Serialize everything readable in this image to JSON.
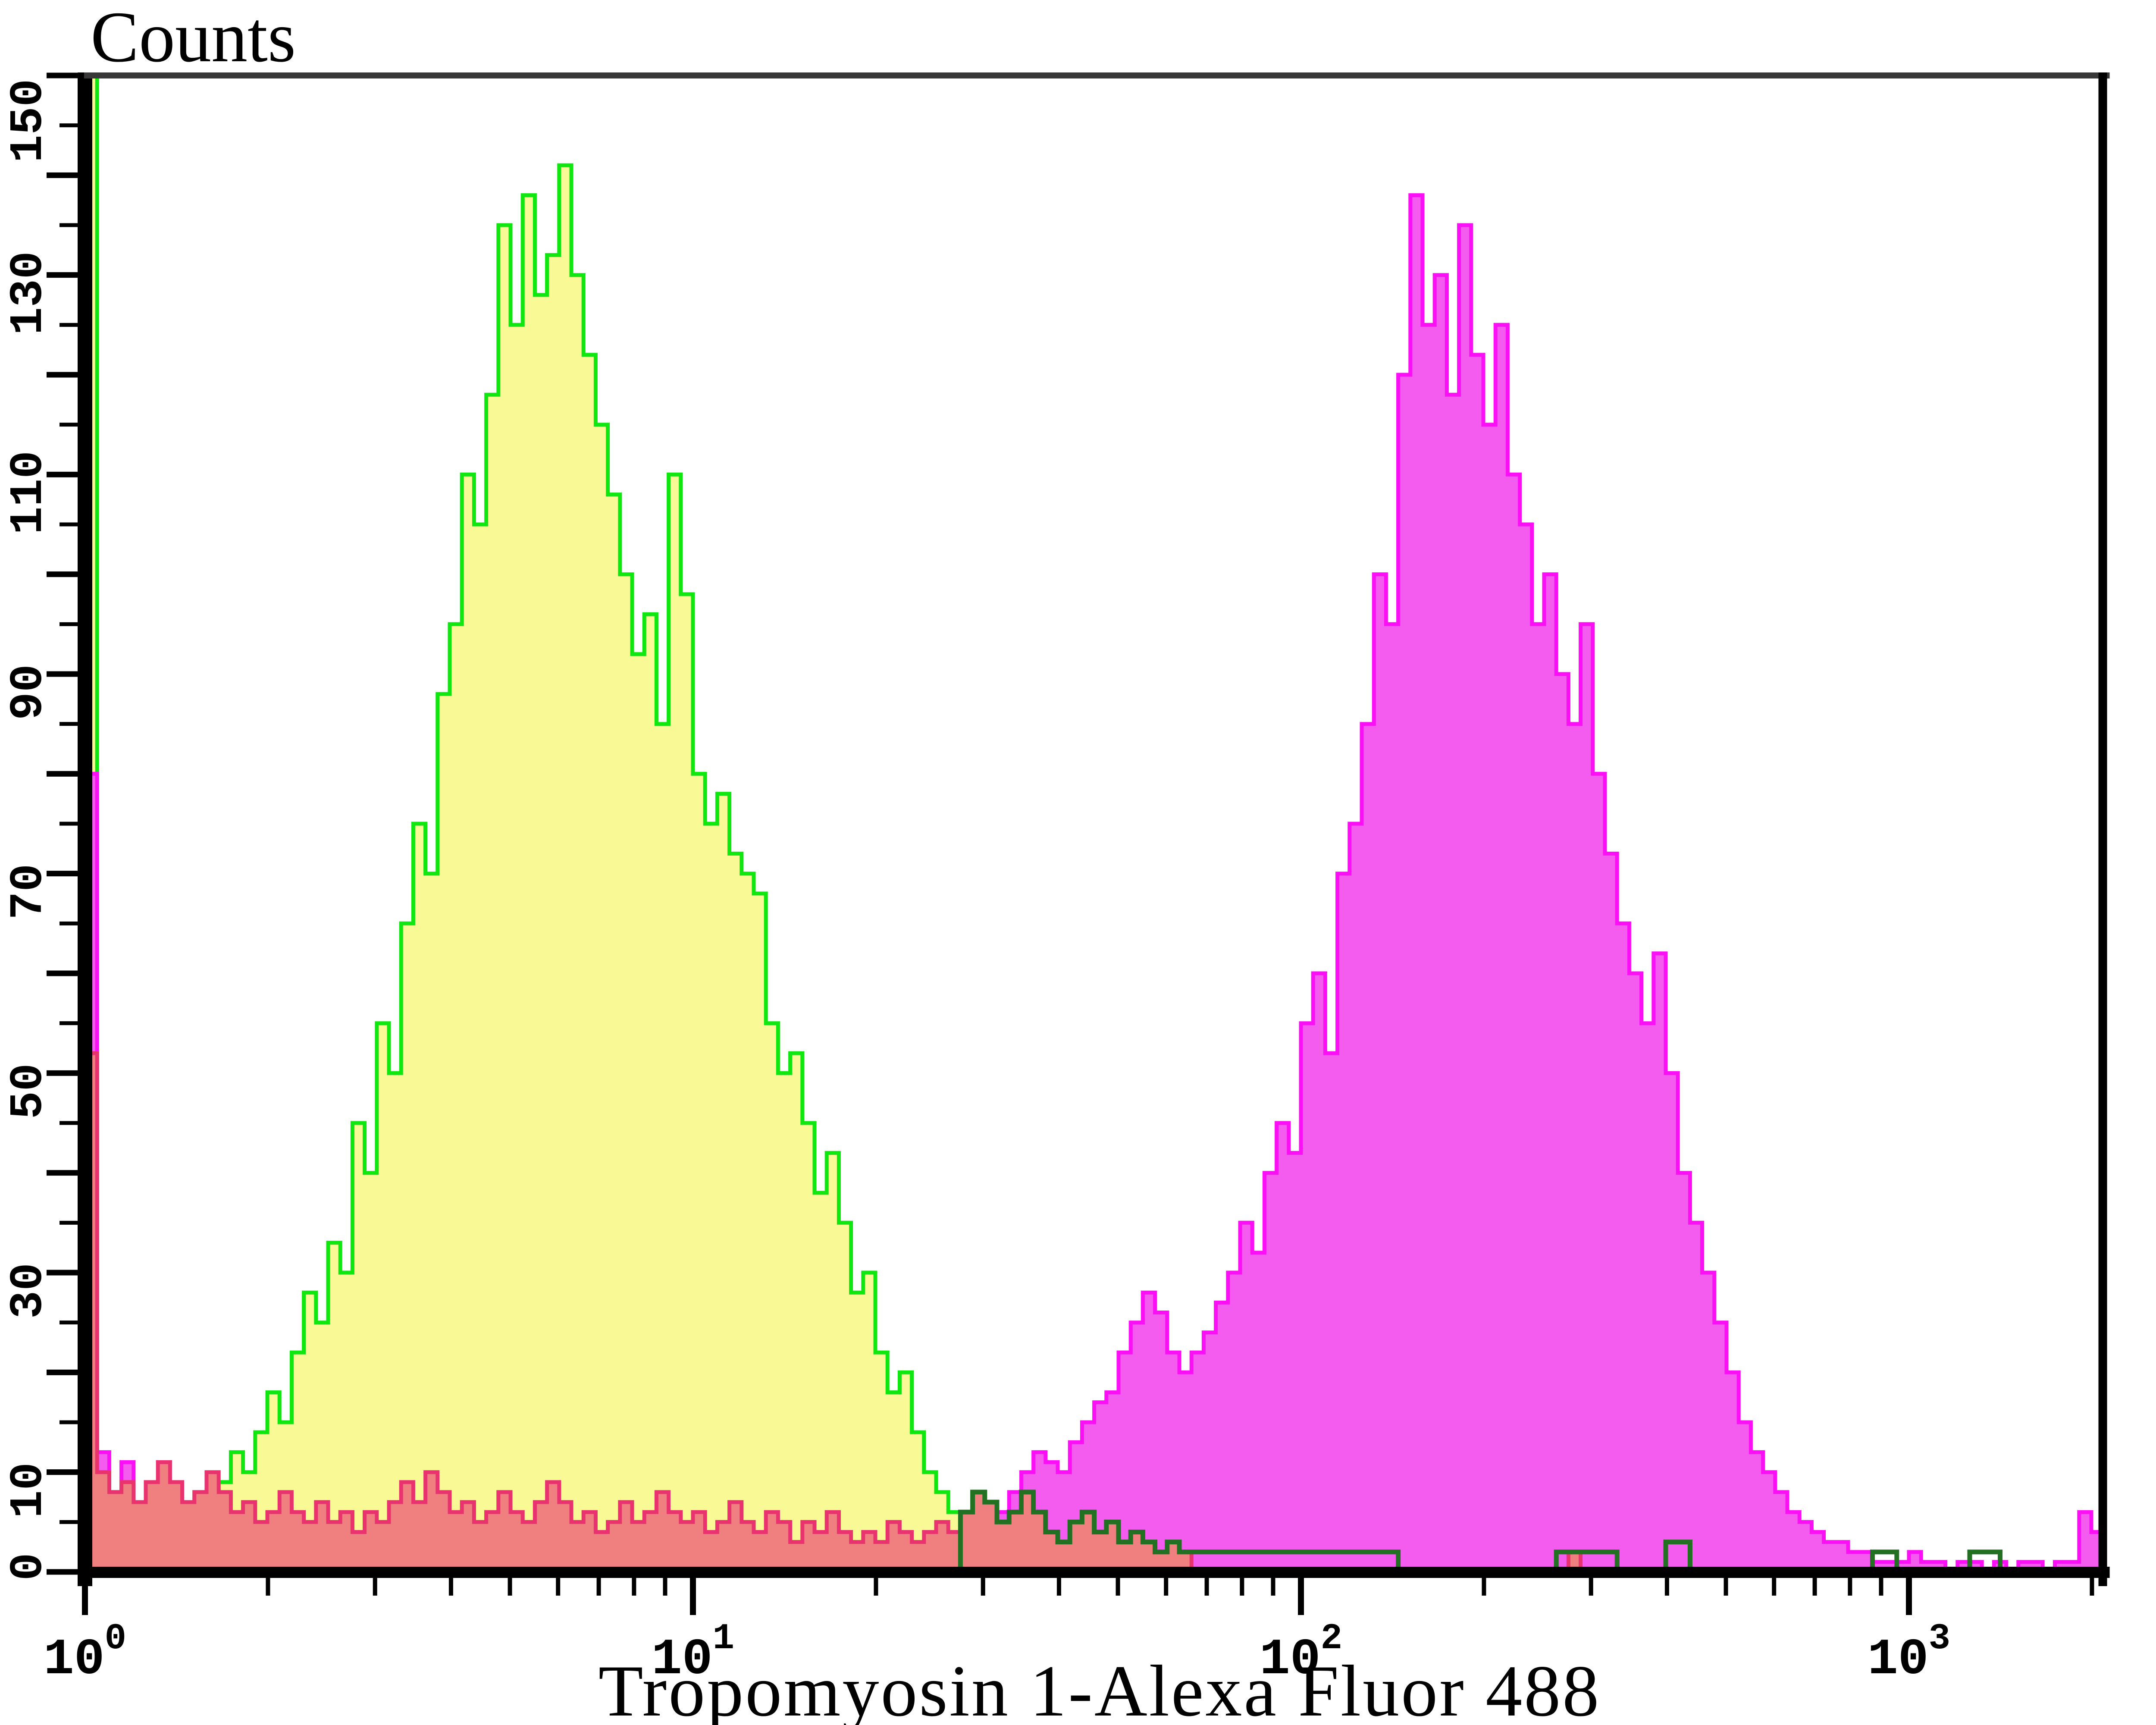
{
  "title": "Counts",
  "x_axis_label": "Tropomyosin 1-Alexa Fluor 488",
  "colors": {
    "control_outline": "#10e610",
    "control_fill": "#f9f996",
    "stained_outline": "#fb10f6",
    "stained_fill": "#f35cef",
    "isotype_outline": "#e8336e",
    "isotype_fill": "#f08080",
    "tail_accent": "#227022",
    "axis": "#000000",
    "top_border": "#383838",
    "background": "#ffffff"
  },
  "chart_data": {
    "type": "area",
    "subtype": "flow-cytometry-overlay-histogram",
    "title": "Counts",
    "xlabel": "Tropomyosin 1-Alexa Fluor 488",
    "x_scale": "log10",
    "x_max_log": 3.316,
    "x_decades": [
      0,
      1,
      2,
      3
    ],
    "x_minor_multipliers": [
      2,
      3,
      4,
      5,
      6,
      7,
      8,
      9
    ],
    "ylim": [
      0,
      150
    ],
    "y_major_step": 10,
    "y_minor_step": 5,
    "y_label_values": [
      0,
      10,
      30,
      50,
      70,
      90,
      110,
      130,
      150
    ],
    "grid": false,
    "legend": "none",
    "series": [
      {
        "name": "negative-control-yellow-green",
        "outline": "#10e610",
        "fill": "#f9f996",
        "parts": [
          {
            "x0": 0,
            "dx": 0.02,
            "counts": [
              150,
              8,
              5,
              6,
              4,
              6,
              5,
              7,
              5,
              8,
              6,
              9,
              12,
              10,
              14,
              18,
              15,
              22,
              28,
              25,
              33,
              30,
              45,
              40,
              55,
              50,
              65,
              75,
              70,
              88,
              95,
              110,
              105,
              118,
              135,
              125,
              138,
              128,
              132,
              141,
              130,
              122,
              115,
              108,
              100,
              92,
              96,
              85,
              110,
              98,
              80,
              75,
              78,
              72,
              70,
              68,
              55,
              50,
              52,
              45,
              38,
              42,
              35,
              28,
              30,
              22,
              18,
              20,
              14,
              10,
              8,
              6,
              4,
              3,
              2,
              0
            ]
          }
        ]
      },
      {
        "name": "tropomyosin1-stained-magenta",
        "outline": "#fb10f6",
        "fill": "#f35cef",
        "parts": [
          {
            "pairs": [
              [
                0,
                80
              ],
              [
                0.02,
                12
              ],
              [
                0.04,
                8
              ],
              [
                0.06,
                11
              ],
              [
                0.08,
                6
              ],
              [
                0.1,
                4
              ],
              [
                0.12,
                3
              ],
              [
                0.16,
                2
              ],
              [
                0.2,
                3
              ],
              [
                0.26,
                2
              ],
              [
                0.32,
                1
              ],
              [
                0.4,
                2
              ],
              [
                0.48,
                1
              ],
              [
                0.56,
                2
              ],
              [
                0.64,
                1
              ],
              [
                0.72,
                2
              ],
              [
                0.8,
                1
              ],
              [
                0.9,
                2
              ],
              [
                1.0,
                1
              ],
              [
                1.1,
                1
              ],
              [
                1.2,
                2
              ],
              [
                1.3,
                1
              ],
              [
                1.38,
                2
              ]
            ]
          },
          {
            "x0": 1.4,
            "dx": 0.02,
            "counts": [
              2,
              2,
              3,
              4,
              5,
              6,
              8,
              10,
              12,
              11,
              10,
              13,
              15,
              17,
              18,
              22,
              25,
              28,
              26,
              22,
              20,
              22,
              24,
              27,
              30,
              35,
              32,
              40,
              45,
              42,
              55,
              60,
              52,
              70,
              75,
              85,
              100,
              95,
              120,
              138,
              125,
              130,
              118,
              135,
              122,
              115,
              125,
              110,
              105,
              95,
              100,
              90,
              85,
              95,
              80,
              72,
              65,
              60,
              55,
              62,
              50,
              40,
              35,
              30,
              25,
              20,
              15,
              12,
              10,
              8,
              6,
              5,
              4,
              3,
              3,
              2,
              2,
              1,
              1,
              1,
              2,
              1,
              1,
              0,
              1,
              1,
              0,
              1,
              0,
              1,
              1,
              0,
              1,
              1,
              6,
              4,
              0
            ]
          }
        ]
      },
      {
        "name": "secondary-only-red",
        "outline": "#e8336e",
        "fill": "#f08080",
        "parts": [
          {
            "x0": 0,
            "dx": 0.02,
            "counts": [
              52,
              10,
              8,
              9,
              7,
              9,
              11,
              9,
              7,
              8,
              10,
              8,
              6,
              7,
              5,
              6,
              8,
              6,
              5,
              7,
              5,
              6,
              4,
              6,
              5,
              7,
              9,
              7,
              10,
              8,
              6,
              7,
              5,
              6,
              8,
              6,
              5,
              7,
              9,
              7,
              5,
              6,
              4,
              5,
              7,
              5,
              6,
              8,
              6,
              5,
              6,
              4,
              5,
              7,
              5,
              4,
              6,
              5,
              3,
              5,
              4,
              6,
              4,
              3,
              4,
              3,
              5,
              4,
              3,
              4,
              5,
              4,
              6,
              8,
              7,
              5,
              6,
              8,
              6,
              4,
              3,
              5,
              6,
              4,
              5,
              3,
              4,
              3,
              2,
              3,
              2
            ]
          },
          {
            "pairs": [
              [
                1.82,
                0
              ],
              [
                2.42,
                0
              ],
              [
                2.44,
                2
              ],
              [
                2.46,
                0
              ]
            ]
          }
        ]
      },
      {
        "name": "green-tail-accents",
        "outline": "#227022",
        "fill": null,
        "parts": [
          {
            "pairs": [
              [
                1.44,
                6
              ],
              [
                1.46,
                8
              ],
              [
                1.48,
                7
              ],
              [
                1.5,
                5
              ],
              [
                1.52,
                6
              ],
              [
                1.54,
                8
              ],
              [
                1.56,
                6
              ],
              [
                1.58,
                4
              ],
              [
                1.6,
                3
              ],
              [
                1.62,
                5
              ],
              [
                1.64,
                6
              ],
              [
                1.66,
                4
              ],
              [
                1.68,
                5
              ],
              [
                1.7,
                3
              ],
              [
                1.72,
                4
              ],
              [
                1.74,
                3
              ],
              [
                1.76,
                2
              ],
              [
                1.78,
                3
              ],
              [
                1.8,
                2
              ],
              [
                1.88,
                2
              ],
              [
                2.14,
                2
              ],
              [
                2.16,
                0
              ]
            ]
          },
          {
            "pairs": [
              [
                2.42,
                2
              ],
              [
                2.5,
                2
              ],
              [
                2.52,
                0
              ]
            ]
          },
          {
            "pairs": [
              [
                2.6,
                3
              ],
              [
                2.64,
                0
              ]
            ]
          },
          {
            "pairs": [
              [
                2.94,
                2
              ],
              [
                2.98,
                0
              ]
            ]
          },
          {
            "pairs": [
              [
                3.1,
                2
              ],
              [
                3.15,
                0
              ]
            ]
          }
        ]
      }
    ]
  }
}
